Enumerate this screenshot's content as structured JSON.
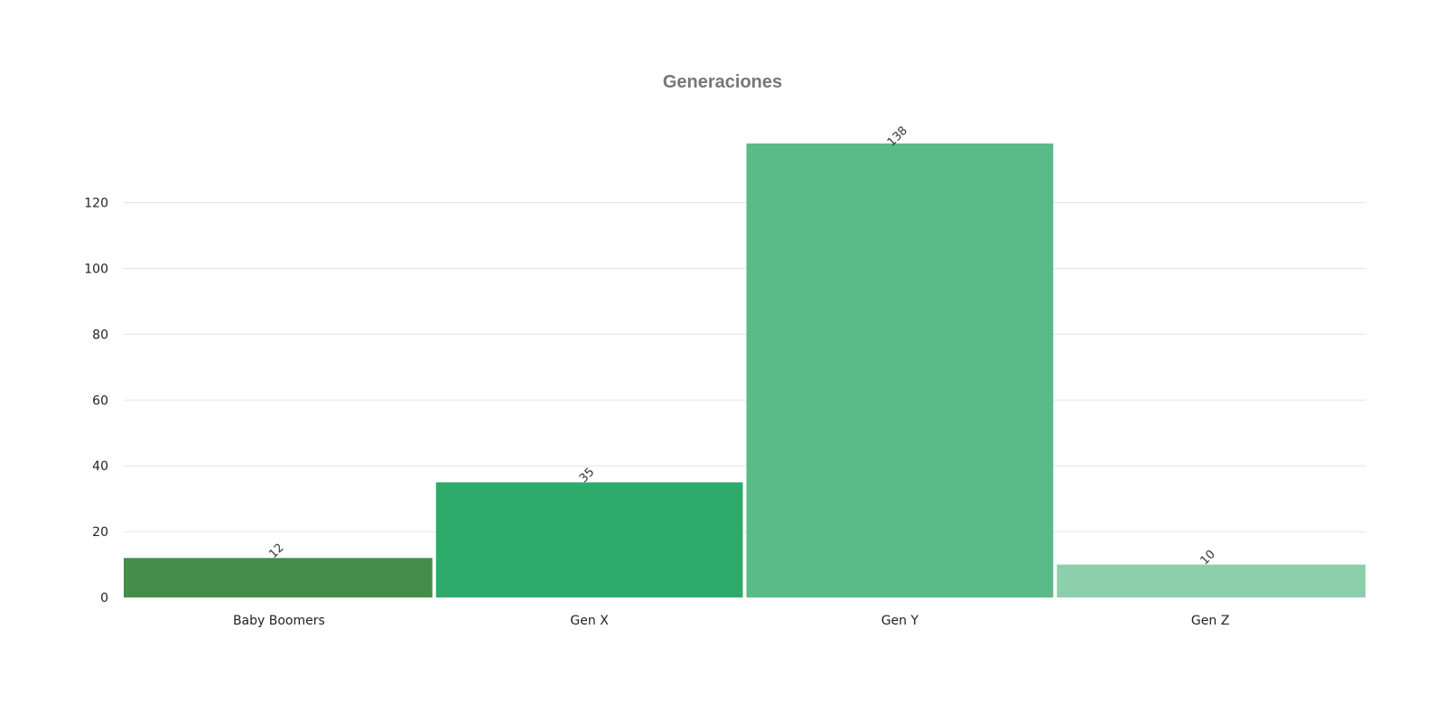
{
  "chart_data": {
    "type": "bar",
    "title": "Generaciones",
    "categories": [
      "Baby Boomers",
      "Gen X",
      "Gen Y",
      "Gen Z"
    ],
    "values": [
      12,
      35,
      138,
      10
    ],
    "bar_colors": [
      "#438e4a",
      "#2eaa6a",
      "#5aba88",
      "#8dcfab"
    ],
    "ylim": [
      0,
      138
    ],
    "yticks": [
      0,
      20,
      40,
      60,
      80,
      100,
      120
    ],
    "grid": true,
    "legend": "none",
    "xlabel": "",
    "ylabel": ""
  }
}
